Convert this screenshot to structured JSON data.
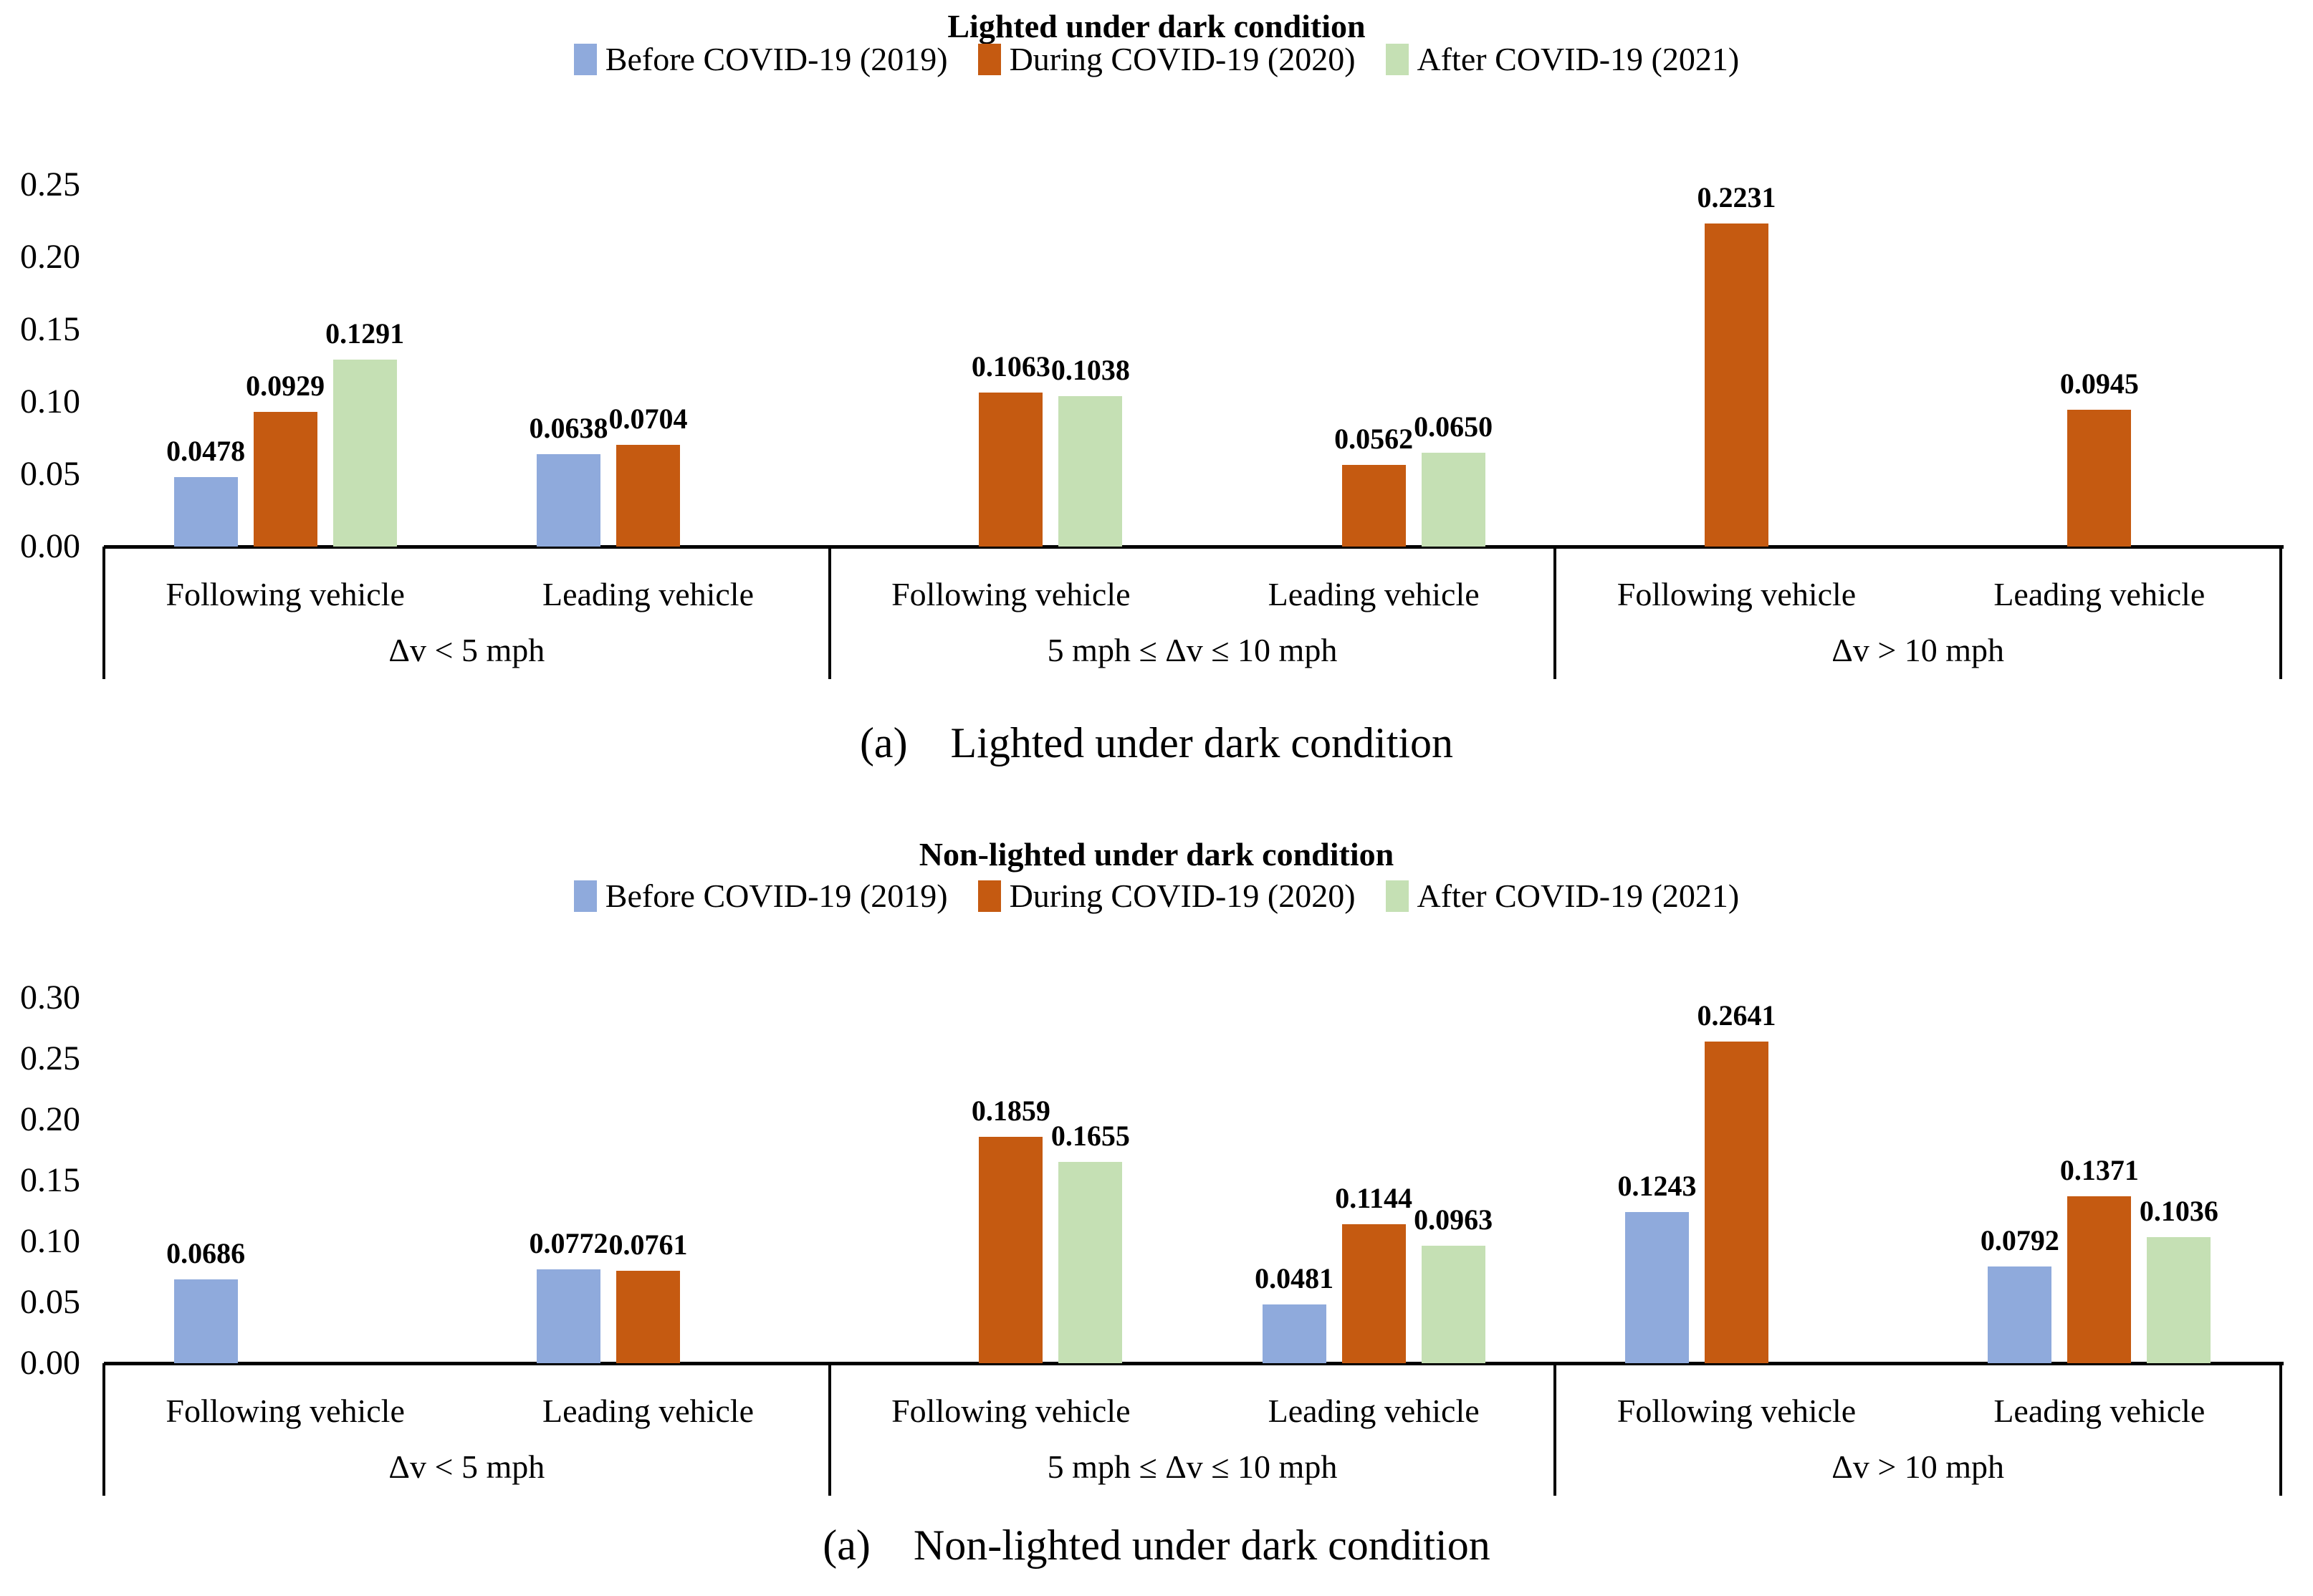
{
  "page": {
    "caption_top": "(a)    Lighted under dark condition",
    "caption_bottom": "(a)    Non-lighted under dark condition"
  },
  "colors": {
    "before": "#8FAADC",
    "during": "#C55A11",
    "after": "#C5E0B4",
    "axis": "#000000"
  },
  "chart_data": [
    {
      "type": "bar",
      "title": "Lighted under dark condition",
      "ylim": [
        0,
        0.25
      ],
      "ytick_step": 0.05,
      "yticks": [
        "0.00",
        "0.05",
        "0.10",
        "0.15",
        "0.20",
        "0.25"
      ],
      "grid": false,
      "legend_position": "top",
      "groups": [
        {
          "label": "Δv < 5 mph"
        },
        {
          "label": "5 mph ≤ Δv ≤ 10 mph"
        },
        {
          "label": "Δv > 10 mph"
        }
      ],
      "categories": [
        "Following vehicle",
        "Leading vehicle",
        "Following vehicle",
        "Leading vehicle",
        "Following vehicle",
        "Leading vehicle"
      ],
      "series": [
        {
          "name": "Before COVID-19 (2019)",
          "color": "before",
          "values": [
            0.0478,
            0.0638,
            null,
            null,
            null,
            null
          ]
        },
        {
          "name": "During COVID-19 (2020)",
          "color": "during",
          "values": [
            0.0929,
            0.0704,
            0.1063,
            0.0562,
            0.2231,
            0.0945
          ]
        },
        {
          "name": "After COVID-19 (2021)",
          "color": "after",
          "values": [
            0.1291,
            null,
            0.1038,
            0.065,
            null,
            null
          ]
        }
      ]
    },
    {
      "type": "bar",
      "title": "Non-lighted under dark condition",
      "ylim": [
        0,
        0.3
      ],
      "ytick_step": 0.05,
      "yticks": [
        "0.00",
        "0.05",
        "0.10",
        "0.15",
        "0.20",
        "0.25",
        "0.30"
      ],
      "grid": false,
      "legend_position": "top",
      "groups": [
        {
          "label": "Δv < 5 mph"
        },
        {
          "label": "5 mph ≤ Δv ≤ 10 mph"
        },
        {
          "label": "Δv > 10 mph"
        }
      ],
      "categories": [
        "Following vehicle",
        "Leading vehicle",
        "Following vehicle",
        "Leading vehicle",
        "Following vehicle",
        "Leading vehicle"
      ],
      "series": [
        {
          "name": "Before COVID-19 (2019)",
          "color": "before",
          "values": [
            0.0686,
            0.0772,
            null,
            0.0481,
            0.1243,
            0.0792
          ]
        },
        {
          "name": "During COVID-19 (2020)",
          "color": "during",
          "values": [
            null,
            0.0761,
            0.1859,
            0.1144,
            0.2641,
            0.1371
          ]
        },
        {
          "name": "After COVID-19 (2021)",
          "color": "after",
          "values": [
            null,
            null,
            0.1655,
            0.0963,
            null,
            0.1036
          ]
        }
      ]
    }
  ]
}
